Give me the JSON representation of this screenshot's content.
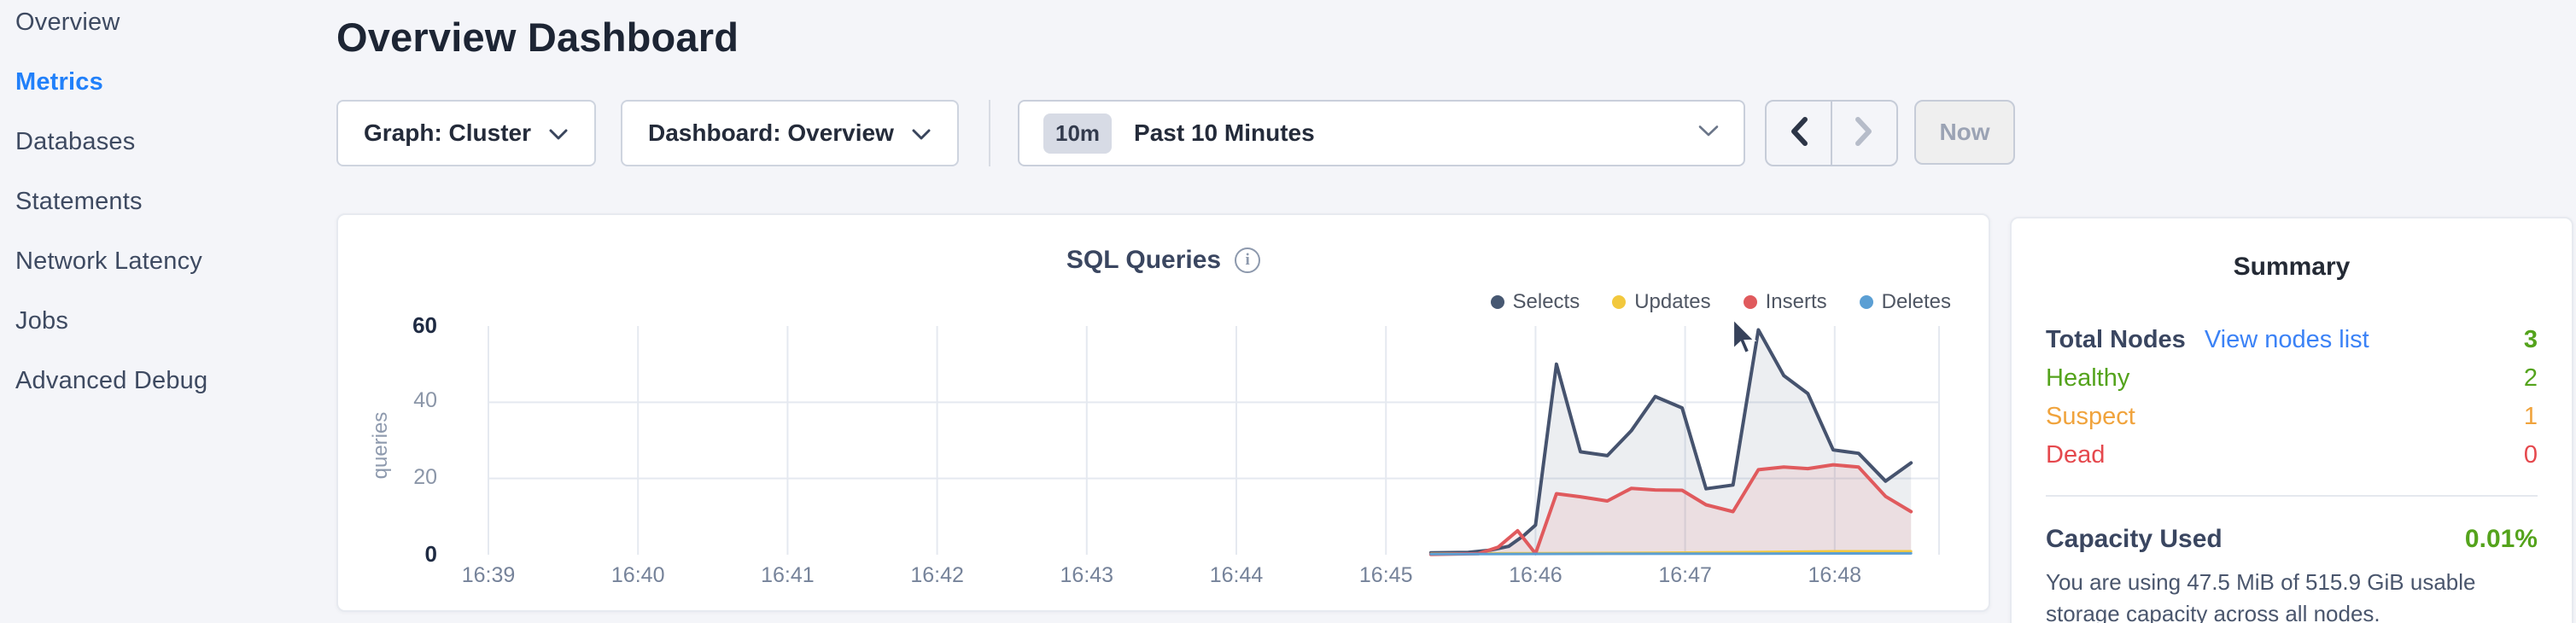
{
  "sidebar": {
    "items": [
      {
        "label": "Overview",
        "active": false
      },
      {
        "label": "Metrics",
        "active": true
      },
      {
        "label": "Databases",
        "active": false
      },
      {
        "label": "Statements",
        "active": false
      },
      {
        "label": "Network Latency",
        "active": false
      },
      {
        "label": "Jobs",
        "active": false
      },
      {
        "label": "Advanced Debug",
        "active": false
      }
    ]
  },
  "header": {
    "title": "Overview Dashboard"
  },
  "controls": {
    "graph_dropdown": {
      "label": "Graph: Cluster"
    },
    "dashboard_dropdown": {
      "label": "Dashboard: Overview"
    },
    "time_picker": {
      "badge": "10m",
      "label": "Past 10 Minutes"
    },
    "prev_arrow": "enabled",
    "next_arrow": "disabled",
    "now_button": "Now"
  },
  "chart_data": {
    "type": "area",
    "title": "SQL Queries",
    "ylabel": "queries",
    "ylim": [
      0,
      60
    ],
    "yticks": [
      0,
      20,
      40,
      60
    ],
    "x_labels": [
      "16:39",
      "16:40",
      "16:41",
      "16:42",
      "16:43",
      "16:44",
      "16:45",
      "16:46",
      "16:47",
      "16:48"
    ],
    "x_start_minute": 39,
    "grid": true,
    "grid_color": "#e5e9f0",
    "legend_position": "top-right",
    "series": [
      {
        "name": "Selects",
        "color": "#46536e",
        "dot_color": "#475872",
        "fill": "rgba(71,88,114,0.10)",
        "width": 4,
        "points": [
          [
            45.3,
            0.5
          ],
          [
            45.55,
            0.6
          ],
          [
            45.7,
            1.2
          ],
          [
            45.82,
            2.2
          ],
          [
            45.92,
            5
          ],
          [
            46.0,
            7.8
          ],
          [
            46.14,
            50
          ],
          [
            46.3,
            27
          ],
          [
            46.48,
            26
          ],
          [
            46.64,
            32.5
          ],
          [
            46.8,
            41.5
          ],
          [
            46.98,
            38.5
          ],
          [
            47.14,
            17.3
          ],
          [
            47.32,
            18.3
          ],
          [
            47.49,
            59
          ],
          [
            47.66,
            47
          ],
          [
            47.82,
            42.3
          ],
          [
            47.99,
            27.5
          ],
          [
            48.16,
            26.6
          ],
          [
            48.34,
            19.3
          ],
          [
            48.51,
            24.1
          ]
        ]
      },
      {
        "name": "Updates",
        "color": "#f2c83d",
        "dot_color": "#f2c83d",
        "fill": "none",
        "width": 3,
        "points": [
          [
            45.3,
            0.3
          ],
          [
            46.0,
            0.4
          ],
          [
            46.8,
            0.5
          ],
          [
            47.5,
            0.7
          ],
          [
            48.0,
            0.9
          ],
          [
            48.51,
            0.9
          ]
        ]
      },
      {
        "name": "Inserts",
        "color": "#e05a5d",
        "dot_color": "#e05a5d",
        "fill": "rgba(224,90,93,0.10)",
        "width": 4,
        "points": [
          [
            45.3,
            0.1
          ],
          [
            45.62,
            0.3
          ],
          [
            45.75,
            2.0
          ],
          [
            45.88,
            6.3
          ],
          [
            46.0,
            0.3
          ],
          [
            46.14,
            16
          ],
          [
            46.3,
            15.2
          ],
          [
            46.48,
            14.1
          ],
          [
            46.64,
            17.4
          ],
          [
            46.8,
            17.0
          ],
          [
            46.98,
            16.9
          ],
          [
            47.14,
            13.1
          ],
          [
            47.32,
            11.3
          ],
          [
            47.49,
            22.3
          ],
          [
            47.66,
            23.0
          ],
          [
            47.82,
            22.6
          ],
          [
            47.99,
            23.6
          ],
          [
            48.16,
            23.0
          ],
          [
            48.34,
            15.3
          ],
          [
            48.51,
            11.3
          ]
        ]
      },
      {
        "name": "Deletes",
        "color": "#5b9fd4",
        "dot_color": "#5b9fd4",
        "fill": "none",
        "width": 3,
        "points": [
          [
            45.3,
            0.15
          ],
          [
            46.5,
            0.25
          ],
          [
            47.5,
            0.3
          ],
          [
            48.51,
            0.35
          ]
        ]
      }
    ]
  },
  "summary": {
    "title": "Summary",
    "rows": [
      {
        "label": "Total Nodes",
        "link": "View nodes list",
        "value": "3",
        "label_color": "#3a4660",
        "value_color": "#54a31c",
        "bold": true
      },
      {
        "label": "Healthy",
        "link": "",
        "value": "2",
        "label_color": "#54a31c",
        "value_color": "#54a31c",
        "bold": false
      },
      {
        "label": "Suspect",
        "link": "",
        "value": "1",
        "label_color": "#f0a33c",
        "value_color": "#f0a33c",
        "bold": false
      },
      {
        "label": "Dead",
        "link": "",
        "value": "0",
        "label_color": "#e5484d",
        "value_color": "#e5484d",
        "bold": false
      }
    ],
    "capacity": {
      "label": "Capacity Used",
      "value": "0.01%",
      "value_color": "#54a31c"
    },
    "description": "You are using 47.5 MiB of 515.9 GiB usable storage capacity across all nodes."
  },
  "colors": {
    "page_bg": "#f4f5f9",
    "active_nav": "#2180fa",
    "link_blue": "#3b82f6",
    "healthy_green": "#54a31c",
    "suspect_orange": "#f0a33c",
    "dead_red": "#e5484d"
  }
}
